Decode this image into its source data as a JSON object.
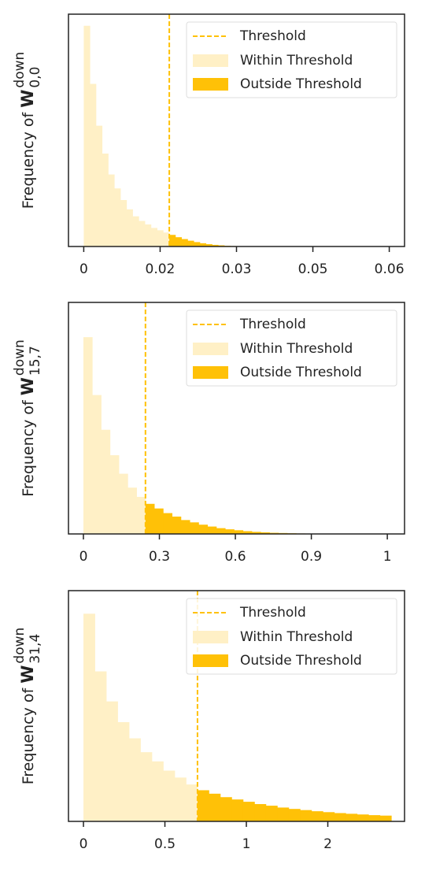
{
  "chart_data": [
    {
      "type": "histogram",
      "ylabel": "Frequency of ",
      "ylabel_symbol": "W",
      "ylabel_superscript": "down",
      "ylabel_subscript": "0,0",
      "bins": [
        0,
        0.0012,
        0.0024,
        0.0036,
        0.0048,
        0.006,
        0.0072,
        0.0084,
        0.0096,
        0.0108,
        0.012,
        0.0132,
        0.0144,
        0.0156,
        0.0168,
        0.018,
        0.0192,
        0.0204,
        0.0216,
        0.0228,
        0.024,
        0.0252,
        0.0264,
        0.0276,
        0.0288,
        0.03
      ],
      "values": [
        95,
        70,
        52,
        40,
        31,
        25,
        20,
        16,
        13,
        11,
        9.5,
        8,
        7,
        6,
        5,
        4,
        3.2,
        2.5,
        1.9,
        1.4,
        1,
        0.7,
        0.5,
        0.3,
        0.2
      ],
      "threshold": 0.0168,
      "xlim": [
        -0.003,
        0.063
      ],
      "ylim": [
        0,
        100
      ],
      "xticks": [
        0,
        {
          "value": 0.015,
          "label": "0.02"
        },
        0.03,
        {
          "value": 0.045,
          "label": "0.05"
        },
        0.06
      ],
      "legend": {
        "threshold": "Threshold",
        "within": "Within Threshold",
        "outside": "Outside Threshold"
      },
      "legend_position": "upper right",
      "threshold_color": "#ffc107",
      "within_color": "#fff0c6",
      "outside_color": "#ffc107"
    },
    {
      "type": "histogram",
      "ylabel": "Frequency of ",
      "ylabel_symbol": "W",
      "ylabel_superscript": "down",
      "ylabel_subscript": "15,7",
      "bins": [
        0,
        0.035,
        0.07,
        0.105,
        0.14,
        0.175,
        0.21,
        0.245,
        0.28,
        0.315,
        0.35,
        0.385,
        0.42,
        0.455,
        0.49,
        0.525,
        0.56,
        0.595,
        0.63,
        0.665,
        0.7,
        0.735,
        0.77,
        0.805,
        0.84,
        0.875,
        0.91,
        0.945
      ],
      "values": [
        85,
        60,
        45,
        34,
        26,
        20,
        16,
        13,
        11,
        9,
        7.5,
        6,
        5,
        4,
        3.2,
        2.5,
        2,
        1.6,
        1.2,
        0.9,
        0.7,
        0.5,
        0.4,
        0.3,
        0.2,
        0.15,
        0.1
      ],
      "threshold": 0.245,
      "xlim": [
        -0.059,
        1.268
      ],
      "ylim": [
        0,
        100
      ],
      "xticks": [
        0,
        0.3,
        0.6,
        0.9,
        {
          "value": 1.2,
          "label": "1"
        }
      ],
      "legend": {
        "threshold": "Threshold",
        "within": "Within Threshold",
        "outside": "Outside Threshold"
      },
      "legend_position": "upper right",
      "threshold_color": "#ffc107",
      "within_color": "#fff0c6",
      "outside_color": "#ffc107"
    },
    {
      "type": "histogram",
      "ylabel": "Frequency of ",
      "ylabel_symbol": "W",
      "ylabel_superscript": "down",
      "ylabel_subscript": "31,4",
      "bins": [
        0,
        0.07,
        0.14,
        0.21,
        0.28,
        0.35,
        0.42,
        0.49,
        0.56,
        0.63,
        0.7,
        0.77,
        0.84,
        0.91,
        0.98,
        1.05,
        1.12,
        1.19,
        1.26,
        1.33,
        1.4,
        1.47,
        1.54,
        1.61,
        1.68,
        1.75,
        1.82,
        1.89
      ],
      "values": [
        90,
        65,
        52,
        43,
        36,
        30,
        26,
        22,
        19,
        16,
        13.5,
        12,
        10.5,
        9.5,
        8.5,
        7.5,
        6.8,
        6,
        5.4,
        4.9,
        4.4,
        4,
        3.6,
        3.3,
        3,
        2.7,
        2.5
      ],
      "threshold": 0.7,
      "xlim": [
        -0.092,
        1.971
      ],
      "ylim": [
        0,
        100
      ],
      "xticks": [
        0,
        0.5,
        1,
        {
          "value": 1.5,
          "label": "2"
        }
      ],
      "legend": {
        "threshold": "Threshold",
        "within": "Within Threshold",
        "outside": "Outside Threshold"
      },
      "legend_position": "upper right",
      "threshold_color": "#ffc107",
      "within_color": "#fff0c6",
      "outside_color": "#ffc107"
    }
  ]
}
